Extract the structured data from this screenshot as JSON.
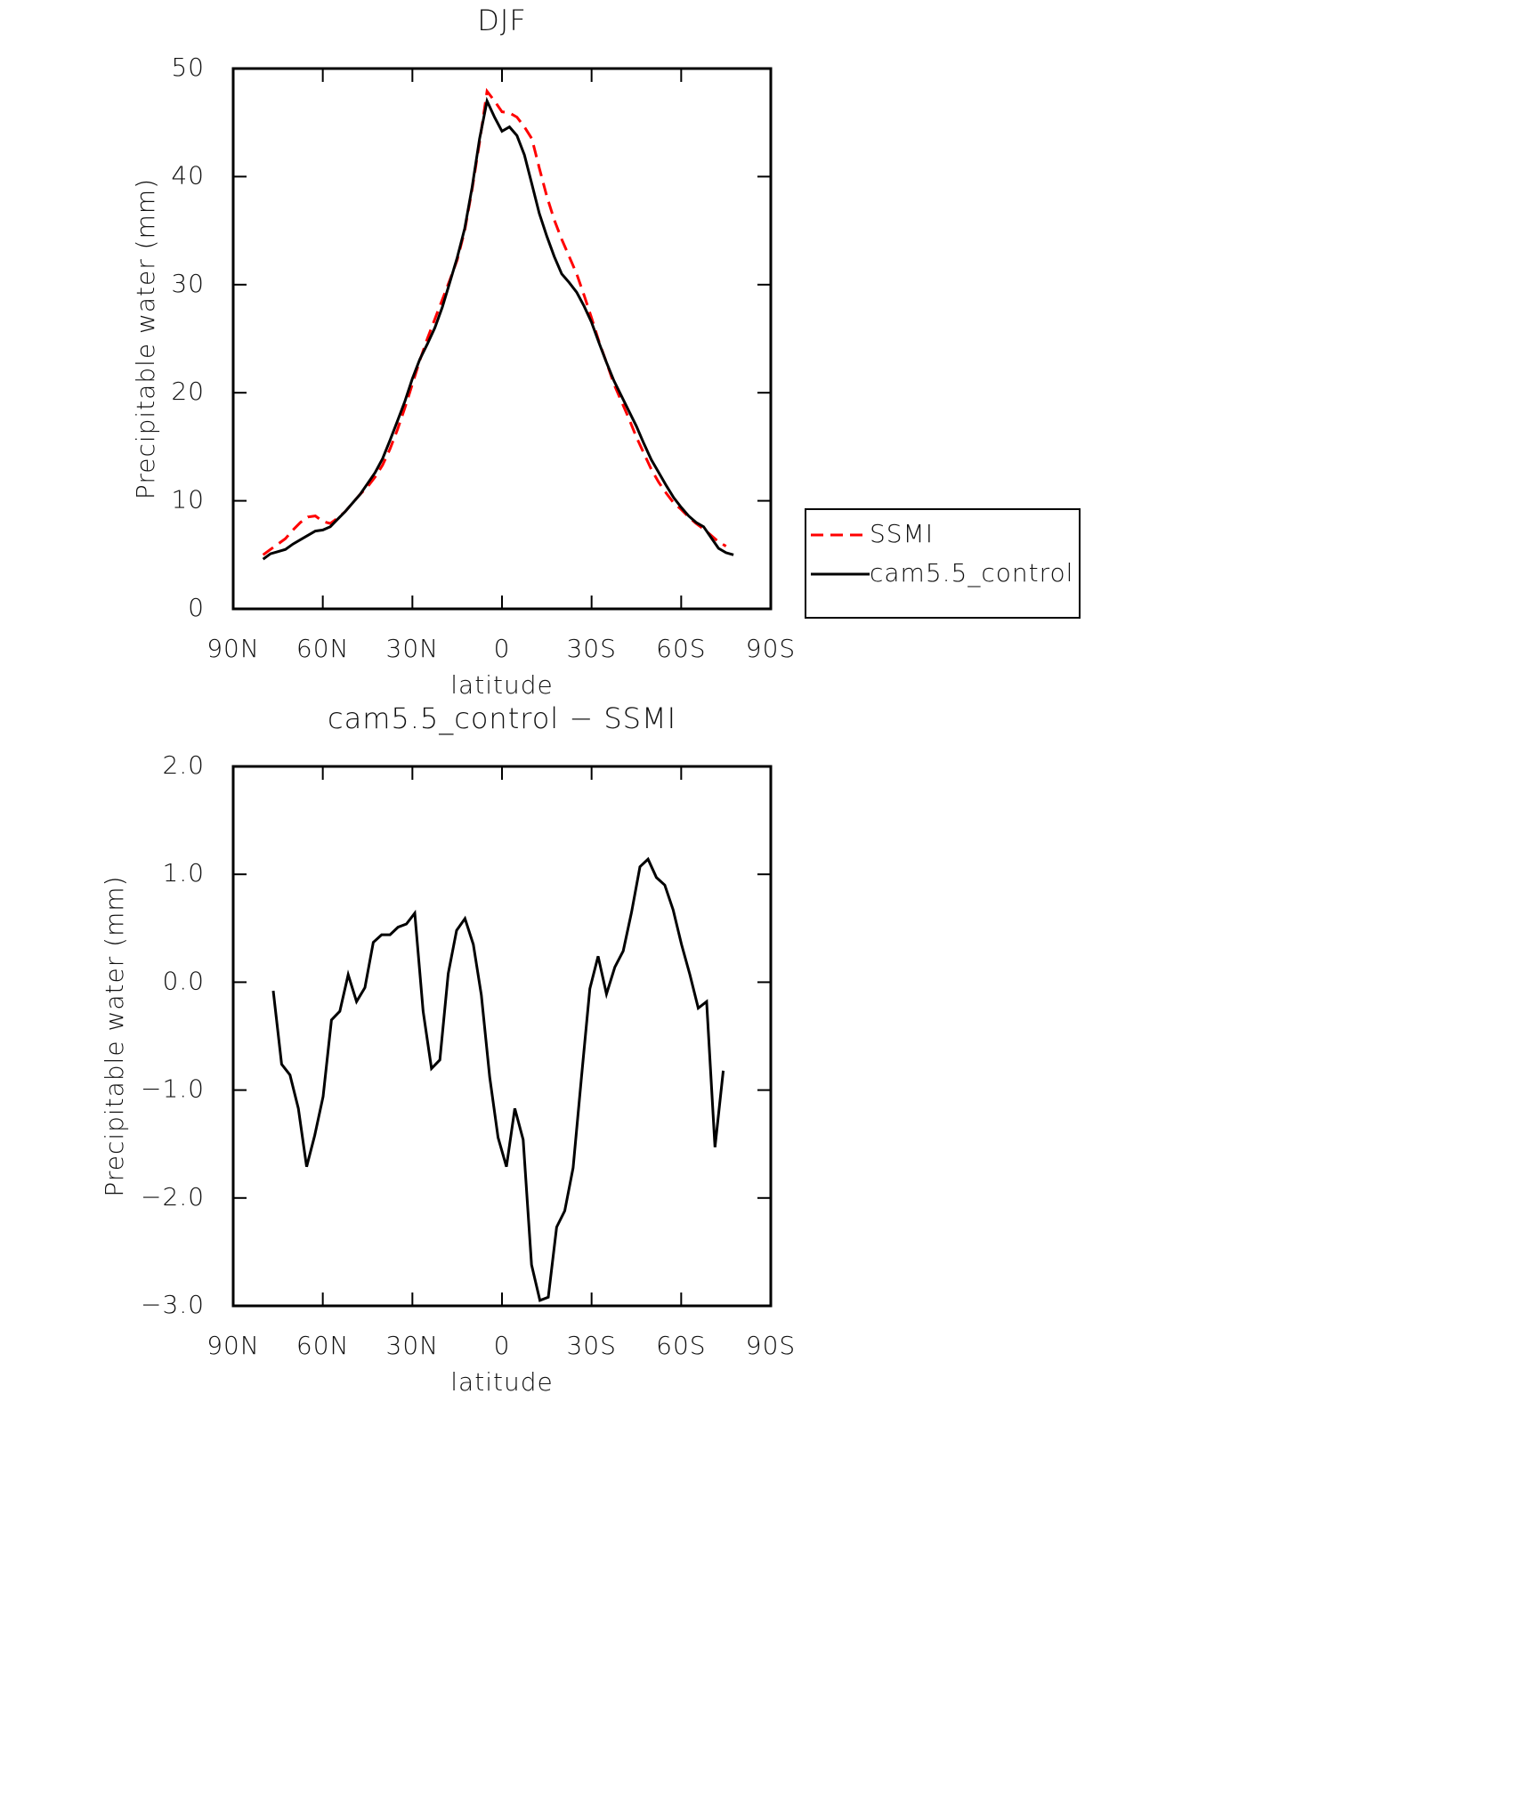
{
  "chart_data": [
    {
      "type": "line",
      "title": "DJF",
      "xlabel": "latitude",
      "ylabel": "Precipitable water (mm)",
      "x": [
        80,
        77.5,
        75,
        72.5,
        70,
        67.5,
        65,
        62.5,
        60,
        57.5,
        55,
        52.5,
        50,
        47.5,
        45,
        42.5,
        40,
        37.5,
        35,
        32.5,
        30,
        27.5,
        25,
        22.5,
        20,
        17.5,
        15,
        12.5,
        10,
        7.5,
        5,
        2.5,
        0,
        -2.5,
        -5,
        -7.5,
        -10,
        -12.5,
        -15,
        -17.5,
        -20,
        -22.5,
        -25,
        -27.5,
        -30,
        -32.5,
        -35,
        -37.5,
        -40,
        -42.5,
        -45,
        -47.5,
        -50,
        -52.5,
        -55,
        -57.5,
        -60,
        -62.5,
        -65,
        -67.5,
        -70,
        -72.5,
        -75,
        -77.5
      ],
      "series": [
        {
          "name": "SSMI",
          "color": "#ff0000",
          "linestyle": "dashed",
          "values": [
            5.0,
            5.5,
            6.0,
            6.5,
            7.3,
            8.0,
            8.5,
            8.6,
            8.1,
            7.9,
            8.4,
            9.0,
            9.8,
            10.6,
            11.3,
            12.2,
            13.3,
            14.8,
            16.6,
            18.6,
            20.8,
            23.0,
            25.0,
            26.8,
            28.6,
            30.4,
            32.3,
            35.0,
            38.8,
            43.2,
            47.9,
            47.0,
            46.0,
            45.9,
            45.5,
            44.6,
            43.5,
            40.8,
            38.2,
            36.0,
            34.2,
            32.6,
            31.0,
            29.0,
            26.9,
            24.7,
            22.8,
            20.8,
            19.2,
            17.6,
            15.9,
            14.4,
            12.9,
            11.7,
            10.7,
            9.8,
            9.2,
            8.5,
            7.9,
            7.4,
            6.8,
            6.2,
            5.8,
            null
          ]
        },
        {
          "name": "cam5.5_control",
          "color": "#000000",
          "linestyle": "solid",
          "values": [
            4.6,
            5.1,
            5.3,
            5.5,
            6.0,
            6.4,
            6.8,
            7.2,
            7.3,
            7.6,
            8.3,
            9.0,
            9.8,
            10.6,
            11.6,
            12.6,
            13.9,
            15.6,
            17.4,
            19.2,
            21.3,
            23.1,
            24.5,
            26.0,
            27.9,
            30.2,
            32.5,
            35.2,
            39.0,
            43.5,
            47.0,
            45.5,
            44.2,
            44.6,
            43.8,
            42.0,
            39.3,
            36.6,
            34.5,
            32.6,
            31.0,
            30.2,
            29.3,
            28.0,
            26.5,
            24.6,
            22.8,
            21.1,
            19.7,
            18.3,
            16.9,
            15.3,
            13.8,
            12.6,
            11.4,
            10.3,
            9.4,
            8.6,
            8.0,
            7.6,
            6.6,
            5.6,
            5.2,
            5.0
          ]
        }
      ],
      "xlim": [
        90,
        -90
      ],
      "xticks": [
        {
          "value": 90,
          "label": "90N"
        },
        {
          "value": 60,
          "label": "60N"
        },
        {
          "value": 30,
          "label": "30N"
        },
        0,
        {
          "value": -30,
          "label": "30S"
        },
        {
          "value": -60,
          "label": "60S"
        },
        {
          "value": -90,
          "label": "90S"
        }
      ],
      "ylim": [
        0,
        50
      ],
      "yticks": [
        0,
        10,
        20,
        30,
        40,
        50
      ],
      "legend": "outside-right"
    },
    {
      "type": "line",
      "title": "cam5.5_control − SSMI",
      "xlabel": "latitude",
      "ylabel": "Precipitable water (mm)",
      "x": [
        76.6,
        73.8,
        71.0,
        68.2,
        65.4,
        62.7,
        59.9,
        57.1,
        54.3,
        51.5,
        48.7,
        45.9,
        43.1,
        40.3,
        37.5,
        34.8,
        32.0,
        29.2,
        26.4,
        23.6,
        20.8,
        18.0,
        15.2,
        12.4,
        9.6,
        6.9,
        4.1,
        1.3,
        -1.5,
        -4.3,
        -7.1,
        -9.9,
        -12.7,
        -15.5,
        -18.3,
        -21.0,
        -23.8,
        -26.6,
        -29.4,
        -32.2,
        -35.0,
        -37.8,
        -40.6,
        -43.4,
        -46.2,
        -48.9,
        -51.7,
        -54.5,
        -57.3,
        -60.1,
        -62.9,
        -65.7,
        -68.5,
        -71.3,
        -74.1
      ],
      "values": [
        -0.08,
        -0.76,
        -0.86,
        -1.17,
        -1.71,
        -1.42,
        -1.06,
        -0.35,
        -0.27,
        0.07,
        -0.18,
        -0.05,
        0.37,
        0.44,
        0.44,
        0.51,
        0.54,
        0.64,
        -0.27,
        -0.8,
        -0.72,
        0.08,
        0.48,
        0.59,
        0.35,
        -0.12,
        -0.88,
        -1.44,
        -1.71,
        -1.17,
        -1.46,
        -2.62,
        -2.95,
        -2.92,
        -2.27,
        -2.12,
        -1.72,
        -0.88,
        -0.06,
        0.24,
        -0.11,
        0.14,
        0.29,
        0.65,
        1.07,
        1.14,
        0.97,
        0.9,
        0.67,
        0.35,
        0.07,
        -0.24,
        -0.18,
        -1.53,
        -0.82
      ],
      "color": "#000000",
      "xlim": [
        90,
        -90
      ],
      "xticks": [
        {
          "value": 90,
          "label": "90N"
        },
        {
          "value": 60,
          "label": "60N"
        },
        {
          "value": 30,
          "label": "30N"
        },
        0,
        {
          "value": -30,
          "label": "30S"
        },
        {
          "value": -60,
          "label": "60S"
        },
        {
          "value": -90,
          "label": "90S"
        }
      ],
      "ylim": [
        -3,
        2
      ],
      "yticks": [
        {
          "value": -3,
          "label": "−3.0"
        },
        {
          "value": -2,
          "label": "−2.0"
        },
        {
          "value": -1,
          "label": "−1.0"
        },
        {
          "value": 0,
          "label": "0.0"
        },
        {
          "value": 1,
          "label": "1.0"
        },
        {
          "value": 2,
          "label": "2.0"
        }
      ]
    }
  ]
}
